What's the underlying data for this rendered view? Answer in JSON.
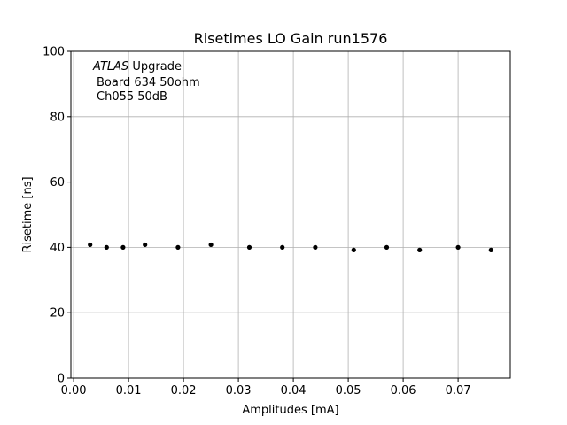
{
  "chart_data": {
    "type": "scatter",
    "title": "Risetimes LO Gain run1576",
    "xlabel": "Amplitudes [mA]",
    "ylabel": "Risetime [ns]",
    "xlim": [
      -0.0005,
      0.0795
    ],
    "ylim": [
      0,
      100
    ],
    "grid": true,
    "xticks": [
      0.0,
      0.01,
      0.02,
      0.03,
      0.04,
      0.05,
      0.06,
      0.07
    ],
    "xtick_labels": [
      "0.00",
      "0.01",
      "0.02",
      "0.03",
      "0.04",
      "0.05",
      "0.06",
      "0.07"
    ],
    "yticks": [
      0,
      20,
      40,
      60,
      80,
      100
    ],
    "ytick_labels": [
      "0",
      "20",
      "40",
      "60",
      "80",
      "100"
    ],
    "annotation": {
      "atlas": "ATLAS",
      "upgrade": " Upgrade",
      "line2": "Board 634 50ohm",
      "line3": "Ch055 50dB"
    },
    "marker_color": "#000000",
    "x": [
      0.003,
      0.006,
      0.009,
      0.013,
      0.019,
      0.025,
      0.032,
      0.038,
      0.044,
      0.051,
      0.057,
      0.063,
      0.07,
      0.076
    ],
    "y": [
      40.8,
      40.0,
      40.0,
      40.8,
      40.0,
      40.8,
      40.0,
      40.0,
      40.0,
      39.2,
      40.0,
      39.2,
      40.0,
      39.2
    ]
  }
}
